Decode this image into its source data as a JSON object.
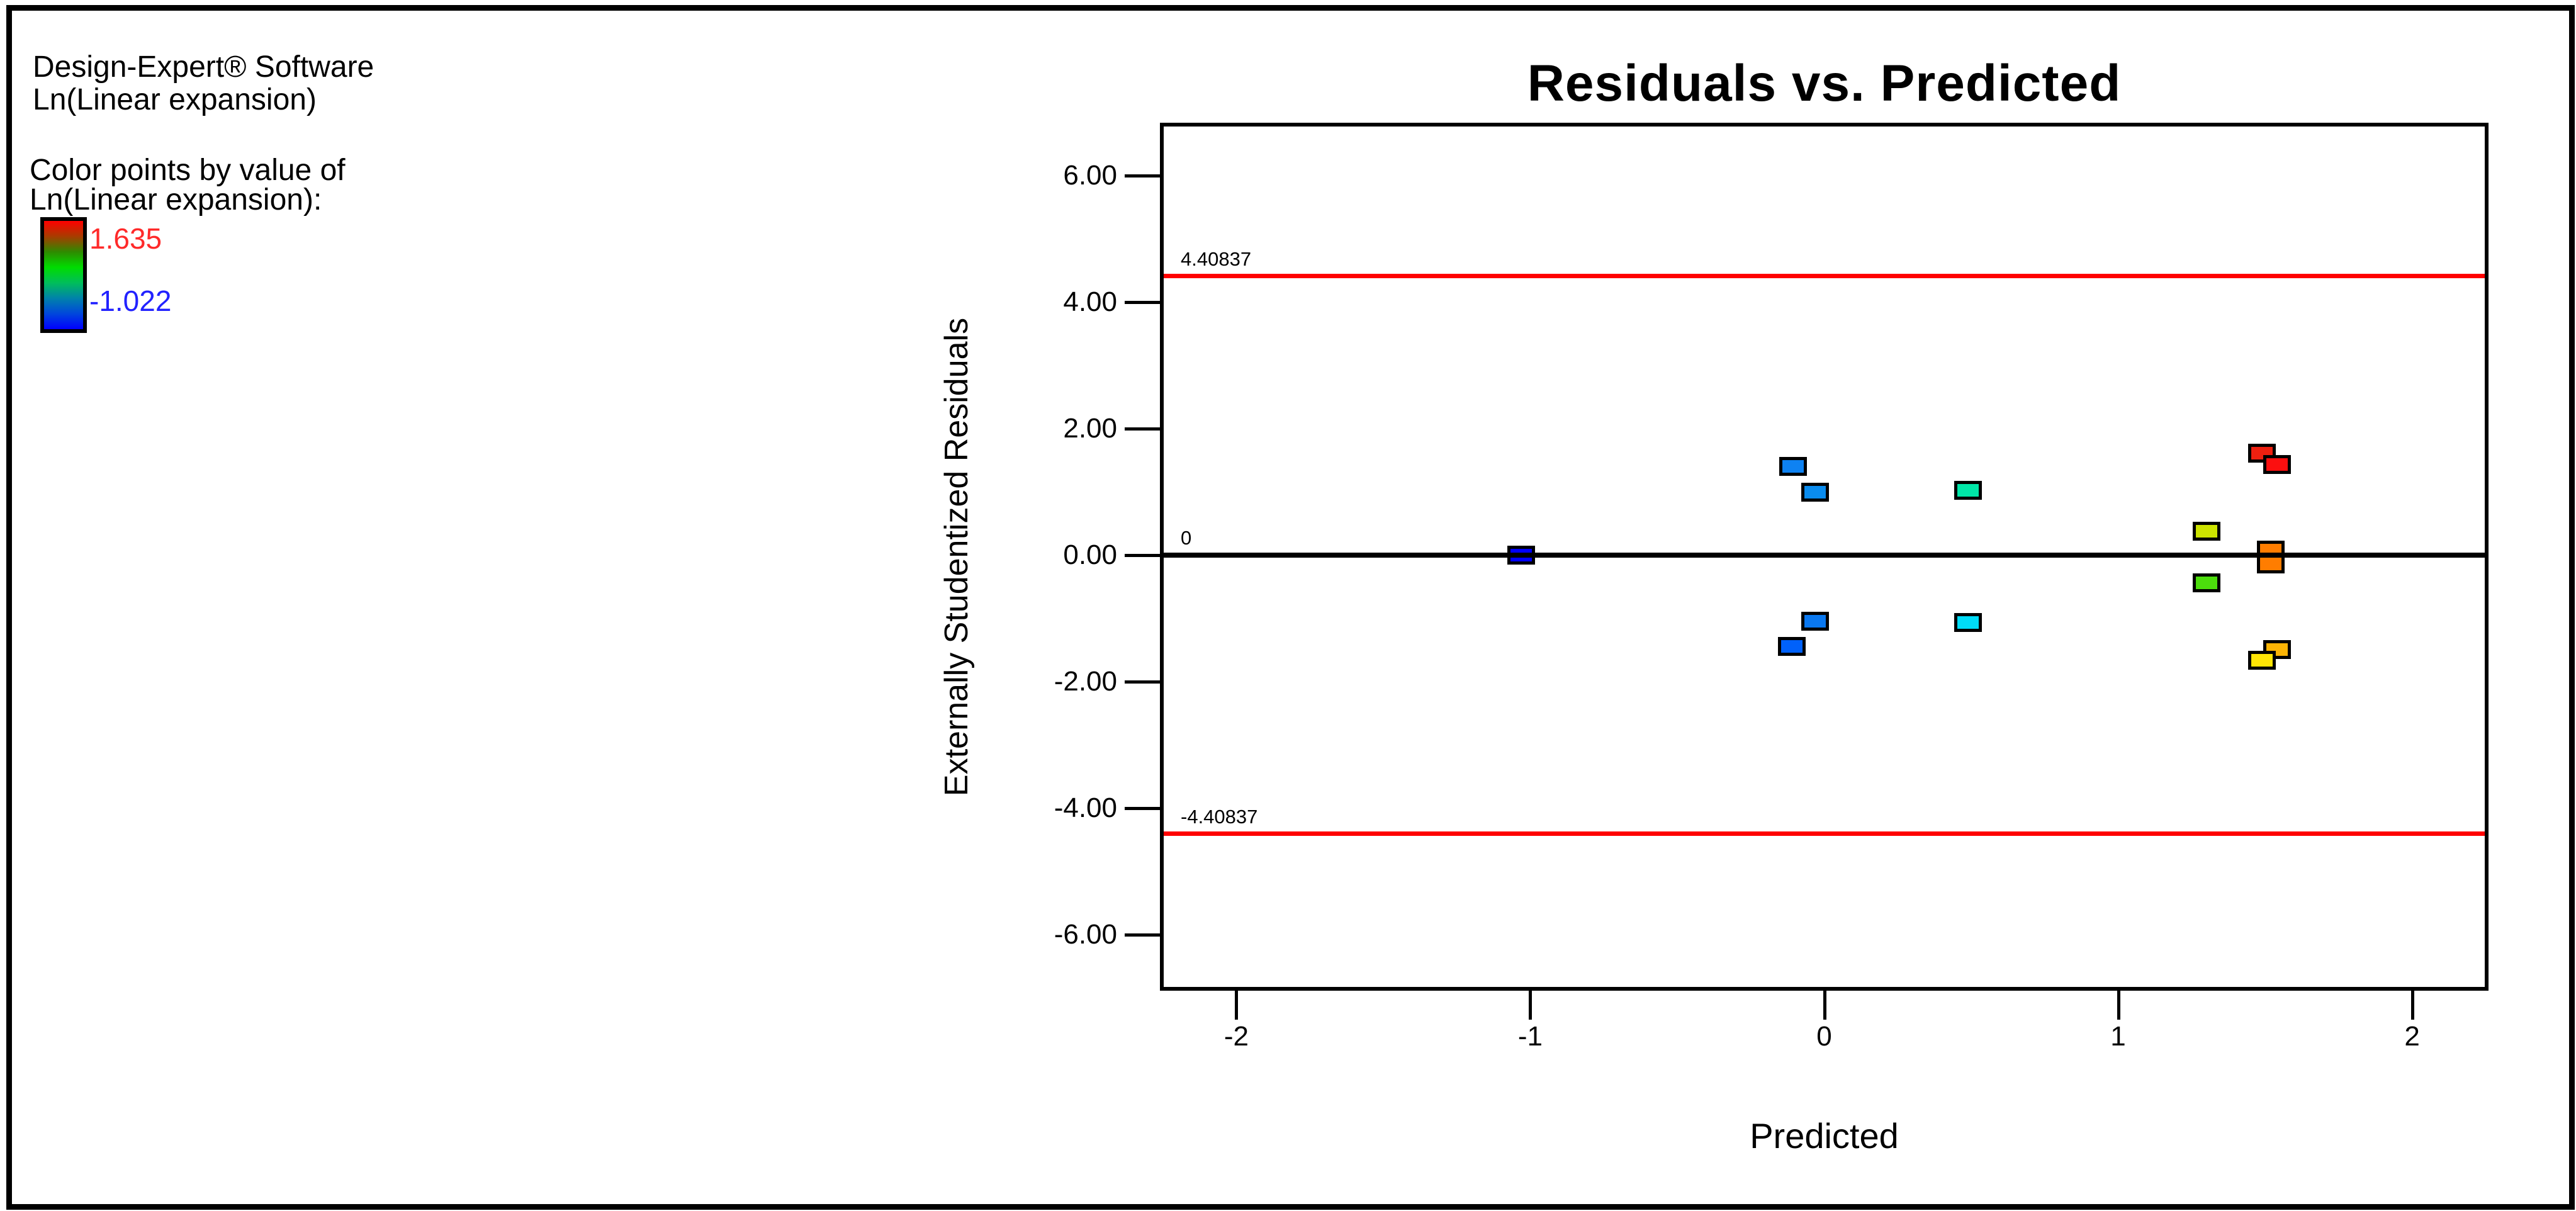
{
  "app": {
    "software_line": "Design-Expert® Software",
    "response_line": "Ln(Linear expansion)"
  },
  "legend": {
    "heading_line1": "Color points by value of",
    "heading_line2": "Ln(Linear expansion):",
    "max_value": "1.635",
    "min_value": "-1.022",
    "max_value_color": "#FF2A2A",
    "min_value_color": "#2222FF",
    "gradient_stops": [
      "#FF0000",
      "#A83C00",
      "#2E8B00",
      "#00DC00",
      "#00BE5A",
      "#0082AA",
      "#0046DC",
      "#0000FF"
    ]
  },
  "chart_data": {
    "type": "scatter",
    "title": "Residuals vs. Predicted",
    "xlabel": "Predicted",
    "ylabel": "Externally Studentized Residuals",
    "xlim": [
      -2.26,
      2.26
    ],
    "ylim": [
      -6.89,
      6.84
    ],
    "grid": false,
    "legend_position": "left",
    "x_ticks": {
      "values": [
        -2,
        -1,
        0,
        1,
        2
      ],
      "labels": [
        "-2",
        "-1",
        "0",
        "1",
        "2"
      ]
    },
    "y_ticks": {
      "values": [
        6,
        4,
        2,
        0,
        -2,
        -4,
        -6
      ],
      "labels": [
        "6.00",
        "4.00",
        "2.00",
        "0.00",
        "-2.00",
        "-4.00",
        "-6.00"
      ]
    },
    "reference_lines": [
      {
        "value": 4.40837,
        "label": "4.40837",
        "color": "#FF0000",
        "thickness": 7
      },
      {
        "value": 0,
        "label": "0",
        "color": "#000000",
        "thickness": 8
      },
      {
        "value": -4.40837,
        "label": "-4.40837",
        "color": "#FF0000",
        "thickness": 7
      }
    ],
    "marker": {
      "shape": "square",
      "border_color": "#000000"
    },
    "points": [
      {
        "x": -1.03,
        "y": 0.0,
        "color": "#0000FF"
      },
      {
        "x": -0.105,
        "y": 1.4,
        "color": "#0E82F2"
      },
      {
        "x": -0.03,
        "y": 1.0,
        "color": "#0A8CEE"
      },
      {
        "x": 0.49,
        "y": 1.03,
        "color": "#00E7A8"
      },
      {
        "x": -0.03,
        "y": -1.05,
        "color": "#0A78F0"
      },
      {
        "x": -0.11,
        "y": -1.44,
        "color": "#0061FB"
      },
      {
        "x": 0.49,
        "y": -1.07,
        "color": "#00DCF8"
      },
      {
        "x": 1.3,
        "y": 0.38,
        "color": "#CDE400"
      },
      {
        "x": 1.3,
        "y": -0.44,
        "color": "#4CDE0C"
      },
      {
        "x": 1.49,
        "y": 1.61,
        "color": "#EE2010"
      },
      {
        "x": 1.54,
        "y": 1.43,
        "color": "#FC0F0F"
      },
      {
        "x": 1.52,
        "y": 0.08,
        "color": "#FF7D00"
      },
      {
        "x": 1.52,
        "y": -0.14,
        "color": "#FF7D00"
      },
      {
        "x": 1.54,
        "y": -1.49,
        "color": "#FBB405"
      },
      {
        "x": 1.49,
        "y": -1.66,
        "color": "#FFE505"
      }
    ]
  }
}
